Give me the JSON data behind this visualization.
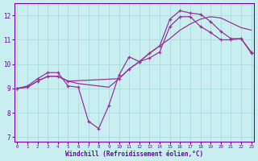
{
  "xlabel": "Windchill (Refroidissement éolien,°C)",
  "background_color": "#c8eef0",
  "grid_color": "#b0dde0",
  "line_color": "#993399",
  "ylim": [
    6.8,
    12.5
  ],
  "xlim": [
    -0.3,
    23.3
  ],
  "yticks": [
    7,
    8,
    9,
    10,
    11,
    12
  ],
  "xticks": [
    0,
    1,
    2,
    3,
    4,
    5,
    6,
    7,
    8,
    9,
    10,
    11,
    12,
    13,
    14,
    15,
    16,
    17,
    18,
    19,
    20,
    21,
    22,
    23
  ],
  "line1_x": [
    0,
    1,
    2,
    3,
    4,
    5,
    6,
    7,
    8,
    9,
    10,
    11,
    12,
    13,
    14,
    15,
    16,
    17,
    18,
    19,
    20,
    21,
    22,
    23
  ],
  "line1_y": [
    9.0,
    9.1,
    9.4,
    9.65,
    9.65,
    9.1,
    9.05,
    7.65,
    7.35,
    8.3,
    9.55,
    10.3,
    10.1,
    10.25,
    10.5,
    11.55,
    11.95,
    11.95,
    11.55,
    11.3,
    11.0,
    11.0,
    11.05,
    10.5
  ],
  "line2_x": [
    0,
    1,
    2,
    3,
    4,
    5,
    6,
    7,
    8,
    9,
    10,
    11,
    12,
    13,
    14,
    15,
    16,
    17,
    18,
    19,
    20,
    21,
    22,
    23
  ],
  "line2_y": [
    9.0,
    9.05,
    9.3,
    9.5,
    9.5,
    9.3,
    9.2,
    9.15,
    9.1,
    9.05,
    9.4,
    9.8,
    10.1,
    10.45,
    10.75,
    11.05,
    11.4,
    11.65,
    11.85,
    11.95,
    11.9,
    11.7,
    11.5,
    11.4
  ],
  "line3_x": [
    0,
    1,
    2,
    3,
    4,
    5,
    10,
    11,
    12,
    13,
    14,
    15,
    16,
    17,
    18,
    19,
    20,
    21,
    22,
    23
  ],
  "line3_y": [
    9.0,
    9.05,
    9.3,
    9.5,
    9.5,
    9.3,
    9.4,
    9.8,
    10.1,
    10.45,
    10.75,
    11.85,
    12.2,
    12.1,
    12.05,
    11.75,
    11.35,
    11.05,
    11.05,
    10.45
  ]
}
